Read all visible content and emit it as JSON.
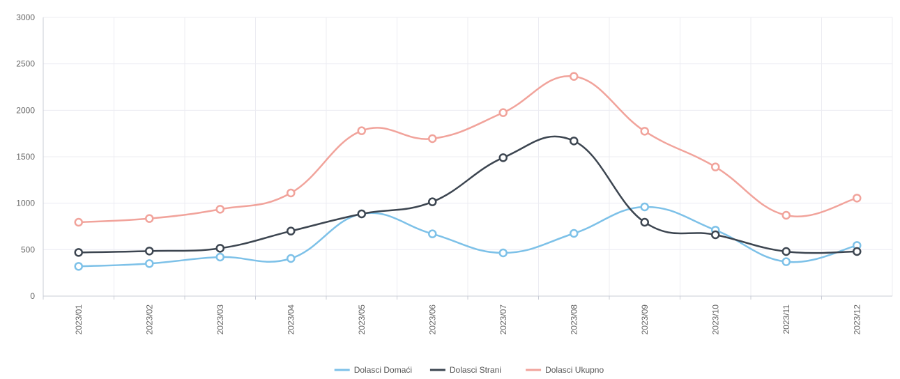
{
  "chart_data": {
    "type": "line",
    "categories": [
      "2023/01",
      "2023/02",
      "2023/03",
      "2023/04",
      "2023/05",
      "2023/06",
      "2023/07",
      "2023/08",
      "2023/09",
      "2023/10",
      "2023/11",
      "2023/12"
    ],
    "series": [
      {
        "name": "Dolasci Domaći",
        "color": "#7dc1e8",
        "values": [
          320,
          350,
          420,
          405,
          885,
          670,
          465,
          675,
          960,
          710,
          370,
          545
        ]
      },
      {
        "name": "Dolasci Strani",
        "color": "#3c4550",
        "values": [
          470,
          485,
          515,
          700,
          885,
          1015,
          1490,
          1670,
          795,
          660,
          480,
          480
        ]
      },
      {
        "name": "Dolasci Ukupno",
        "color": "#f1a39b",
        "values": [
          795,
          835,
          935,
          1110,
          1780,
          1695,
          1975,
          2365,
          1775,
          1390,
          870,
          1055
        ]
      }
    ],
    "yticks": [
      "0",
      "500",
      "1000",
      "1500",
      "2000",
      "2500",
      "3000"
    ],
    "ylim": [
      0,
      3000
    ],
    "grid": true,
    "legend_position": "bottom-center"
  }
}
